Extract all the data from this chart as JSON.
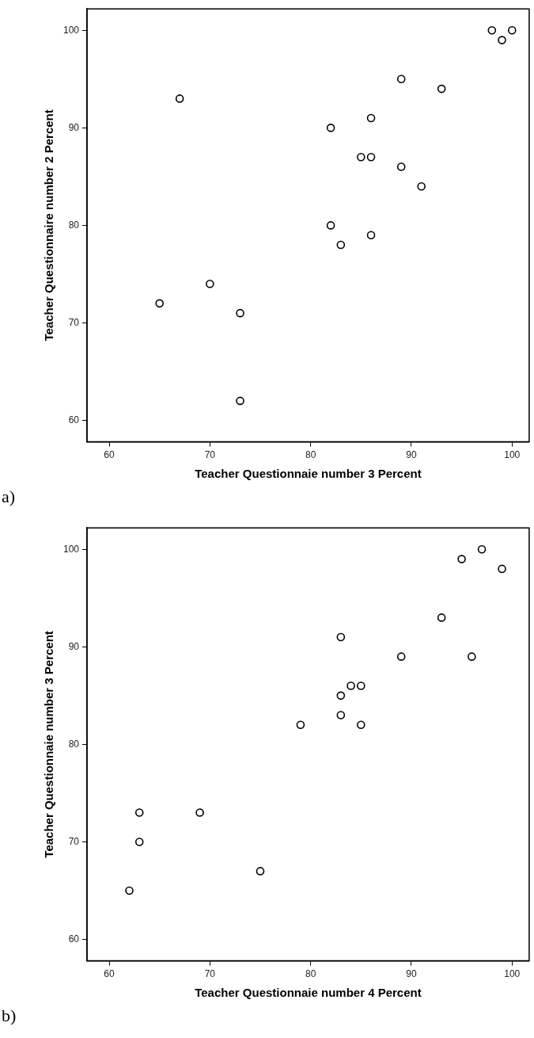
{
  "chart_data": [
    {
      "type": "scatter",
      "xlabel": "Teacher Questionnaie number 3 Percent",
      "ylabel": "Teacher Questionnaire number 2 Percent",
      "x": [
        98,
        99,
        100,
        67,
        89,
        93,
        82,
        86,
        85,
        86,
        89,
        91,
        82,
        86,
        83,
        70,
        65,
        73,
        73
      ],
      "values": [
        100,
        99,
        100,
        93,
        95,
        94,
        90,
        91,
        87,
        87,
        86,
        84,
        80,
        79,
        78,
        74,
        72,
        71,
        62
      ],
      "color": "#000000",
      "marker": "circle",
      "grid": false,
      "xlim": [
        57.8,
        101.7
      ],
      "xticks": [
        60,
        70,
        80,
        90,
        100
      ],
      "ylim": [
        57.8,
        102.2
      ],
      "yticks": [
        60,
        70,
        80,
        90,
        100
      ],
      "annotations": [
        "a)"
      ]
    },
    {
      "type": "scatter",
      "xlabel": "Teacher Questionnaie number 4 Percent",
      "ylabel": "Teacher Questionnaie number 3 Percent",
      "x": [
        97,
        95,
        99,
        93,
        83,
        89,
        96,
        84,
        85,
        83,
        83,
        79,
        85,
        63,
        69,
        63,
        75,
        62
      ],
      "values": [
        100,
        99,
        98,
        93,
        91,
        89,
        89,
        86,
        86,
        85,
        83,
        82,
        82,
        73,
        73,
        70,
        67,
        65
      ],
      "color": "#000000",
      "marker": "circle",
      "grid": false,
      "xlim": [
        57.8,
        101.7
      ],
      "xticks": [
        60,
        70,
        80,
        90,
        100
      ],
      "ylim": [
        57.8,
        102.2
      ],
      "yticks": [
        60,
        70,
        80,
        90,
        100
      ],
      "annotations": [
        "b)"
      ]
    }
  ]
}
